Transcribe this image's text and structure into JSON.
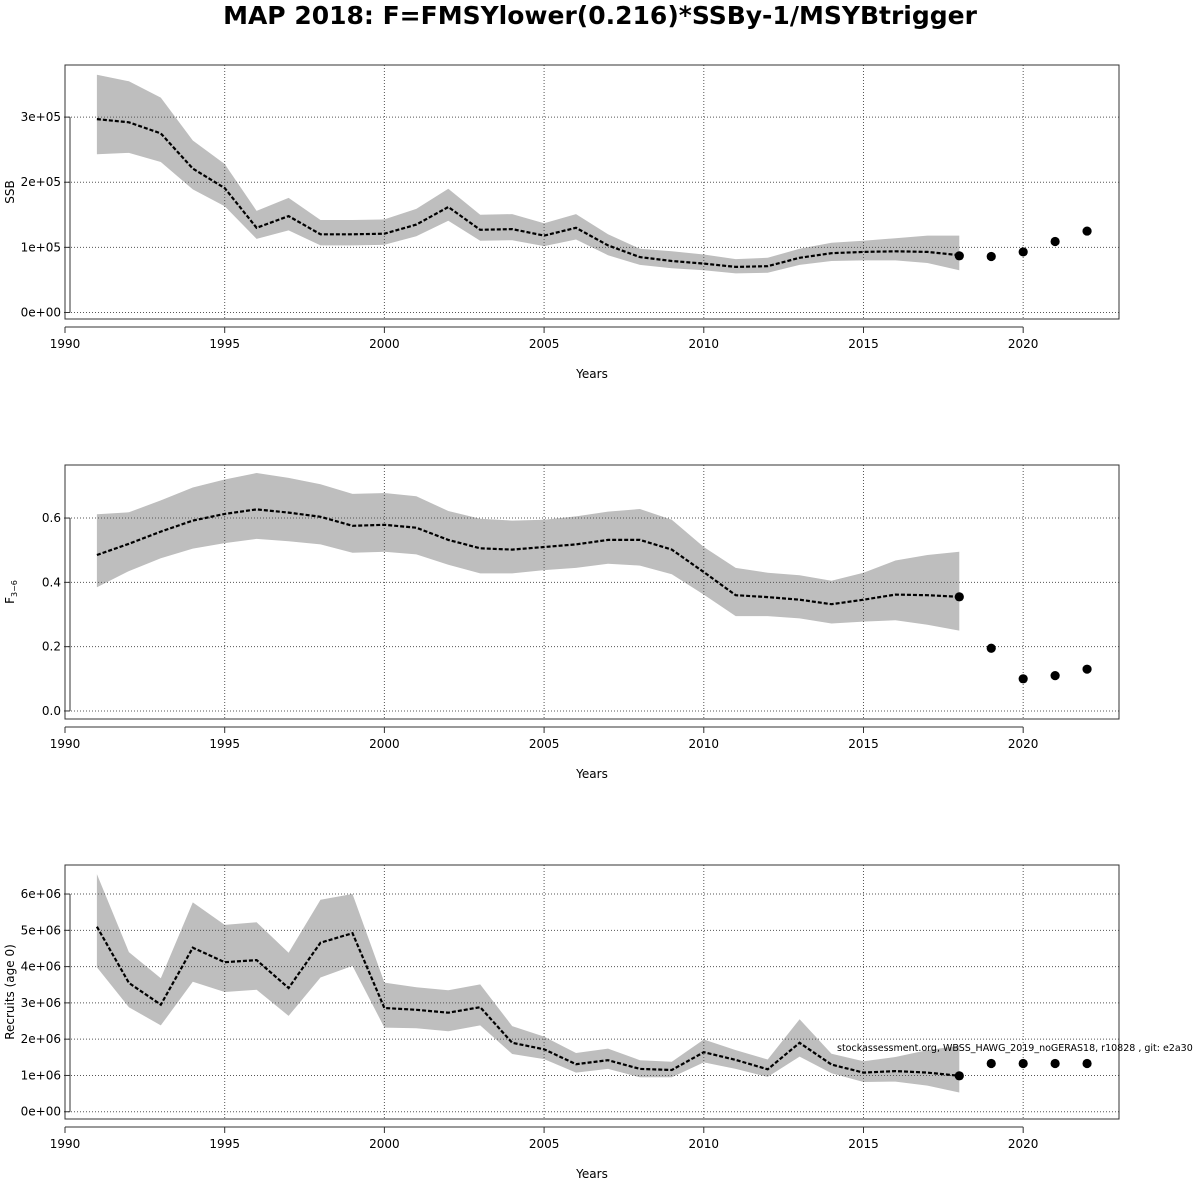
{
  "figure": {
    "title": "MAP 2018: F=FMSYlower(0.216)*SSBy-1/MSYBtrigger",
    "credit": "stockassessment.org, WBSS_HAWG_2019_noGERAS18, r10828 , git: e2a30"
  },
  "colors": {
    "band": "#bebebe",
    "line": "#000000",
    "grid": "#555555",
    "frame": "#333333"
  },
  "chart_data": [
    {
      "type": "line",
      "name": "ssb",
      "xlabel": "Years",
      "ylabel": "SSB",
      "xlim": [
        1990,
        2023
      ],
      "ylim": [
        -10000,
        380000
      ],
      "grid": true,
      "x_ticks": [
        1990,
        1995,
        2000,
        2005,
        2010,
        2015,
        2020
      ],
      "y_ticks": [
        0,
        100000,
        200000,
        300000
      ],
      "y_tick_labels": [
        "0e+00",
        "1e+05",
        "2e+05",
        "3e+05"
      ],
      "x": [
        1991,
        1992,
        1993,
        1994,
        1995,
        1996,
        1997,
        1998,
        1999,
        2000,
        2001,
        2002,
        2003,
        2004,
        2005,
        2006,
        2007,
        2008,
        2009,
        2010,
        2011,
        2012,
        2013,
        2014,
        2015,
        2016,
        2017,
        2018
      ],
      "estimate": [
        297000,
        292000,
        275000,
        221000,
        191000,
        130000,
        148000,
        120000,
        120000,
        121000,
        135000,
        162000,
        127000,
        128000,
        118000,
        130000,
        103000,
        85000,
        79000,
        75000,
        70000,
        71000,
        84000,
        91000,
        93000,
        94000,
        93000,
        88000
      ],
      "lower": [
        243000,
        245000,
        231000,
        189000,
        163000,
        113000,
        126000,
        103000,
        103000,
        104000,
        117000,
        141000,
        110000,
        111000,
        102000,
        112000,
        88000,
        73000,
        68000,
        65000,
        60000,
        61000,
        73000,
        79000,
        80000,
        80000,
        76000,
        65000
      ],
      "upper": [
        365000,
        355000,
        330000,
        264000,
        228000,
        156000,
        176000,
        142000,
        142000,
        143000,
        159000,
        190000,
        150000,
        151000,
        137000,
        151000,
        120000,
        98000,
        94000,
        89000,
        82000,
        84000,
        98000,
        107000,
        110000,
        114000,
        118000,
        118000
      ],
      "projection_x": [
        2018,
        2019,
        2020,
        2021,
        2022
      ],
      "projection_y": [
        87000,
        86000,
        93000,
        109000,
        125000
      ]
    },
    {
      "type": "line",
      "name": "fishing-mortality",
      "xlabel": "Years",
      "ylabel": "F",
      "ylabel_sub": "3−6",
      "xlim": [
        1990,
        2023
      ],
      "ylim": [
        -0.025,
        0.765
      ],
      "grid": true,
      "x_ticks": [
        1990,
        1995,
        2000,
        2005,
        2010,
        2015,
        2020
      ],
      "y_ticks": [
        0,
        0.2,
        0.4,
        0.6
      ],
      "y_tick_labels": [
        "0.0",
        "0.2",
        "0.4",
        "0.6"
      ],
      "x": [
        1991,
        1992,
        1993,
        1994,
        1995,
        1996,
        1997,
        1998,
        1999,
        2000,
        2001,
        2002,
        2003,
        2004,
        2005,
        2006,
        2007,
        2008,
        2009,
        2010,
        2011,
        2012,
        2013,
        2014,
        2015,
        2016,
        2017,
        2018
      ],
      "estimate": [
        0.485,
        0.52,
        0.558,
        0.592,
        0.613,
        0.627,
        0.617,
        0.604,
        0.576,
        0.579,
        0.57,
        0.532,
        0.506,
        0.502,
        0.51,
        0.518,
        0.532,
        0.532,
        0.502,
        0.432,
        0.36,
        0.354,
        0.346,
        0.332,
        0.346,
        0.362,
        0.36,
        0.355
      ],
      "lower": [
        0.385,
        0.435,
        0.475,
        0.505,
        0.522,
        0.535,
        0.528,
        0.518,
        0.492,
        0.495,
        0.487,
        0.455,
        0.428,
        0.428,
        0.438,
        0.445,
        0.458,
        0.452,
        0.425,
        0.362,
        0.295,
        0.295,
        0.288,
        0.272,
        0.278,
        0.282,
        0.268,
        0.25
      ],
      "upper": [
        0.612,
        0.618,
        0.655,
        0.695,
        0.72,
        0.74,
        0.725,
        0.705,
        0.675,
        0.678,
        0.668,
        0.622,
        0.598,
        0.592,
        0.595,
        0.605,
        0.62,
        0.628,
        0.595,
        0.51,
        0.445,
        0.43,
        0.422,
        0.405,
        0.43,
        0.468,
        0.485,
        0.495
      ],
      "projection_x": [
        2018,
        2019,
        2020,
        2021,
        2022
      ],
      "projection_y": [
        0.355,
        0.195,
        0.1,
        0.11,
        0.13
      ]
    },
    {
      "type": "line",
      "name": "recruits",
      "xlabel": "Years",
      "ylabel": "Recruits (age 0)",
      "xlim": [
        1990,
        2023
      ],
      "ylim": [
        -200000,
        6800000
      ],
      "grid": true,
      "x_ticks": [
        1990,
        1995,
        2000,
        2005,
        2010,
        2015,
        2020
      ],
      "y_ticks": [
        0,
        1000000,
        2000000,
        3000000,
        4000000,
        5000000,
        6000000
      ],
      "y_tick_labels": [
        "0e+00",
        "1e+06",
        "2e+06",
        "3e+06",
        "4e+06",
        "5e+06",
        "6e+06"
      ],
      "x": [
        1991,
        1992,
        1993,
        1994,
        1995,
        1996,
        1997,
        1998,
        1999,
        2000,
        2001,
        2002,
        2003,
        2004,
        2005,
        2006,
        2007,
        2008,
        2009,
        2010,
        2011,
        2012,
        2013,
        2014,
        2015,
        2016,
        2017,
        2018
      ],
      "estimate": [
        5100000,
        3550000,
        2950000,
        4520000,
        4120000,
        4180000,
        3410000,
        4660000,
        4920000,
        2860000,
        2810000,
        2730000,
        2880000,
        1900000,
        1720000,
        1310000,
        1420000,
        1180000,
        1150000,
        1640000,
        1430000,
        1170000,
        1900000,
        1300000,
        1080000,
        1120000,
        1080000,
        990000
      ],
      "lower": [
        3980000,
        2880000,
        2380000,
        3580000,
        3300000,
        3360000,
        2640000,
        3700000,
        4020000,
        2320000,
        2300000,
        2220000,
        2380000,
        1590000,
        1450000,
        1080000,
        1180000,
        950000,
        950000,
        1360000,
        1180000,
        960000,
        1520000,
        1060000,
        820000,
        830000,
        720000,
        530000
      ],
      "upper": [
        6550000,
        4400000,
        3680000,
        5770000,
        5150000,
        5220000,
        4380000,
        5840000,
        6000000,
        3560000,
        3430000,
        3350000,
        3510000,
        2360000,
        2070000,
        1620000,
        1740000,
        1420000,
        1380000,
        1990000,
        1700000,
        1440000,
        2550000,
        1600000,
        1390000,
        1510000,
        1700000,
        1820000
      ],
      "projection_x": [
        2018,
        2019,
        2020,
        2021,
        2022
      ],
      "projection_y": [
        990000,
        1330000,
        1330000,
        1330000,
        1330000
      ]
    }
  ]
}
